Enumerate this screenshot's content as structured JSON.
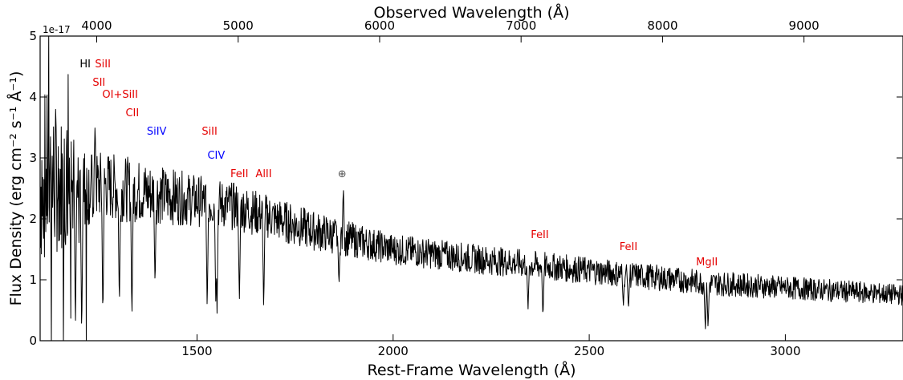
{
  "chart_data": {
    "type": "line",
    "x_axis_bottom": {
      "label": "Rest-Frame Wavelength (Å)",
      "ticks": [
        1500,
        2000,
        2500,
        3000
      ],
      "range": [
        1100,
        3300
      ]
    },
    "x_axis_top": {
      "label": "Observed Wavelength (Å)",
      "ticks": [
        4000,
        5000,
        6000,
        7000,
        8000,
        9000
      ],
      "range": [
        3600,
        9700
      ]
    },
    "y_axis": {
      "label": "Flux Density (erg cm⁻² s⁻¹ Å⁻¹)",
      "ticks": [
        0,
        1,
        2,
        3,
        4,
        5
      ],
      "range": [
        0,
        5
      ],
      "offset_label": "1e-17"
    },
    "grid": false,
    "series": [
      {
        "color": "#000000",
        "continuum": [
          {
            "x": 1100,
            "y": 2.7
          },
          {
            "x": 1215,
            "y": 2.5
          },
          {
            "x": 1260,
            "y": 2.55
          },
          {
            "x": 1400,
            "y": 2.4
          },
          {
            "x": 1600,
            "y": 2.2
          },
          {
            "x": 1800,
            "y": 1.8
          },
          {
            "x": 2000,
            "y": 1.5
          },
          {
            "x": 2200,
            "y": 1.35
          },
          {
            "x": 2500,
            "y": 1.15
          },
          {
            "x": 2800,
            "y": 0.95
          },
          {
            "x": 3000,
            "y": 0.87
          },
          {
            "x": 3300,
            "y": 0.75
          }
        ],
        "noise_y": [
          {
            "x": 1100,
            "y": 0.9
          },
          {
            "x": 1230,
            "y": 0.35
          },
          {
            "x": 1500,
            "y": 0.25
          },
          {
            "x": 2000,
            "y": 0.15
          },
          {
            "x": 3300,
            "y": 0.1
          }
        ],
        "absorption_lines": [
          {
            "x": 1190,
            "y": 0.2
          },
          {
            "x": 1206,
            "y": 0.0
          },
          {
            "x": 1260,
            "y": 0.3
          },
          {
            "x": 1302,
            "y": 0.5
          },
          {
            "x": 1334,
            "y": 0.3
          },
          {
            "x": 1393,
            "y": 0.85
          },
          {
            "x": 1526,
            "y": 0.45
          },
          {
            "x": 1548,
            "y": 0.5
          },
          {
            "x": 1551,
            "y": 0.45
          },
          {
            "x": 1608,
            "y": 0.6
          },
          {
            "x": 1670,
            "y": 0.5
          },
          {
            "x": 1862,
            "y": 0.9
          },
          {
            "x": 2344,
            "y": 0.5
          },
          {
            "x": 2382,
            "y": 0.35
          },
          {
            "x": 2587,
            "y": 0.55
          },
          {
            "x": 2600,
            "y": 0.5
          },
          {
            "x": 2796,
            "y": 0.15
          },
          {
            "x": 2803,
            "y": 0.2
          }
        ],
        "emission_spikes": [
          {
            "x": 1240,
            "y": 3.6
          },
          {
            "x": 1873,
            "y": 2.55
          }
        ]
      }
    ],
    "annotations": [
      {
        "text": "HI",
        "x": 1215,
        "y": 4.55,
        "color": "#000000"
      },
      {
        "text": "SiII",
        "x": 1260,
        "y": 4.55,
        "color": "#e50000"
      },
      {
        "text": "SII",
        "x": 1250,
        "y": 4.25,
        "color": "#e50000"
      },
      {
        "text": "OI+SiII",
        "x": 1304,
        "y": 4.05,
        "color": "#e50000"
      },
      {
        "text": "CII",
        "x": 1335,
        "y": 3.75,
        "color": "#e50000"
      },
      {
        "text": "SiIV",
        "x": 1397,
        "y": 3.45,
        "color": "#0000ff"
      },
      {
        "text": "SiII",
        "x": 1532,
        "y": 3.45,
        "color": "#e50000"
      },
      {
        "text": "CIV",
        "x": 1549,
        "y": 3.05,
        "color": "#0000ff"
      },
      {
        "text": "FeII",
        "x": 1608,
        "y": 2.75,
        "color": "#e50000"
      },
      {
        "text": "AlII",
        "x": 1670,
        "y": 2.75,
        "color": "#e50000"
      },
      {
        "text": "⊕",
        "x": 1870,
        "y": 2.75,
        "color": "#555555"
      },
      {
        "text": "FeII",
        "x": 2374,
        "y": 1.75,
        "color": "#e50000"
      },
      {
        "text": "FeII",
        "x": 2600,
        "y": 1.55,
        "color": "#e50000"
      },
      {
        "text": "MgII",
        "x": 2800,
        "y": 1.3,
        "color": "#e50000"
      }
    ]
  }
}
